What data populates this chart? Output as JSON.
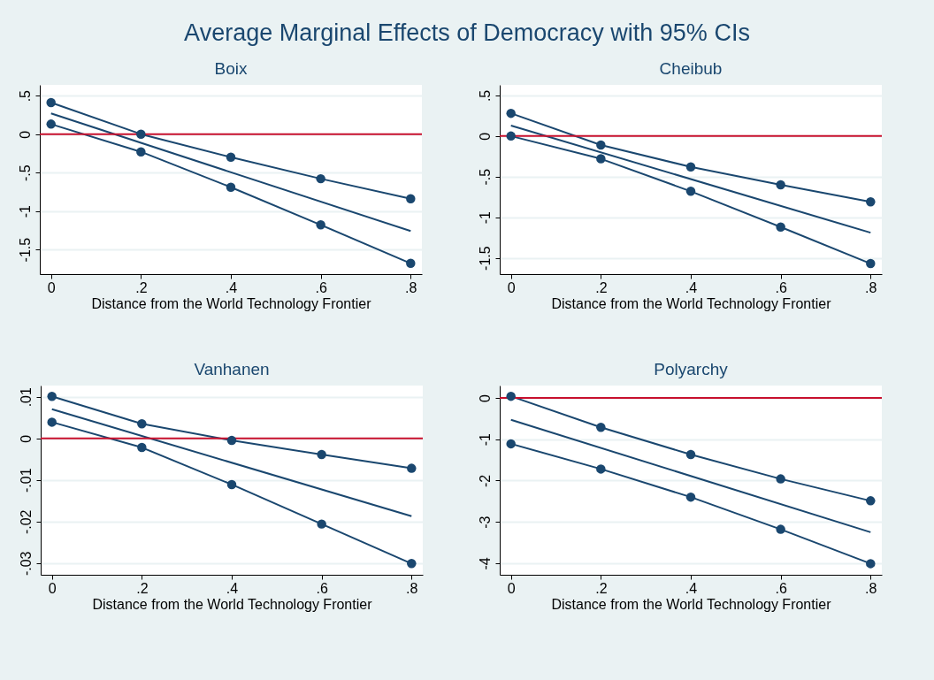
{
  "chart_data": [
    {
      "type": "other",
      "title": "Average Marginal Effects of Democracy with 95% CIs"
    },
    {
      "type": "line",
      "title": "Boix",
      "xlabel": "Distance from the World Technology Frontier",
      "xlim": [
        -0.025,
        0.825
      ],
      "xticks": [
        {
          "value": 0,
          "label": "0"
        },
        {
          "value": 0.2,
          "label": ".2"
        },
        {
          "value": 0.4,
          "label": ".4"
        },
        {
          "value": 0.6,
          "label": ".6"
        },
        {
          "value": 0.8,
          "label": ".8"
        }
      ],
      "ylim": [
        -1.82,
        0.64
      ],
      "yticks": [
        {
          "value": -1.5,
          "label": "-1.5"
        },
        -1,
        {
          "value": -0.5,
          "label": "-.5"
        },
        0,
        {
          "value": 0.5,
          "label": ".5"
        }
      ],
      "grid": "y",
      "ref_lines": [
        {
          "axis": "y",
          "value": 0,
          "color": "#c8102e"
        }
      ],
      "series": [
        {
          "color": "#1a476f",
          "marker": "circle",
          "x": [
            0,
            0.2,
            0.4,
            0.6,
            0.8
          ],
          "values": [
            0.41,
            0.0,
            -0.3,
            -0.58,
            -0.84
          ]
        },
        {
          "color": "#1a476f",
          "marker": "none",
          "x": [
            0,
            0.8
          ],
          "values": [
            0.27,
            -1.26
          ]
        },
        {
          "color": "#1a476f",
          "marker": "circle",
          "x": [
            0,
            0.2,
            0.4,
            0.6,
            0.8
          ],
          "values": [
            0.13,
            -0.23,
            -0.69,
            -1.18,
            -1.68
          ]
        }
      ]
    },
    {
      "type": "line",
      "title": "Cheibub",
      "xlabel": "Distance from the World Technology Frontier",
      "xlim": [
        -0.025,
        0.825
      ],
      "xticks": [
        {
          "value": 0,
          "label": "0"
        },
        {
          "value": 0.2,
          "label": ".2"
        },
        {
          "value": 0.4,
          "label": ".4"
        },
        {
          "value": 0.6,
          "label": ".6"
        },
        {
          "value": 0.8,
          "label": ".8"
        }
      ],
      "ylim": [
        -1.7,
        0.63
      ],
      "yticks": [
        {
          "value": -1.5,
          "label": "-1.5"
        },
        -1,
        {
          "value": -0.5,
          "label": "-.5"
        },
        0,
        {
          "value": 0.5,
          "label": ".5"
        }
      ],
      "grid": "y",
      "ref_lines": [
        {
          "axis": "y",
          "value": 0,
          "color": "#c8102e"
        }
      ],
      "series": [
        {
          "color": "#1a476f",
          "marker": "circle",
          "x": [
            0,
            0.2,
            0.4,
            0.6,
            0.8
          ],
          "values": [
            0.28,
            -0.11,
            -0.38,
            -0.6,
            -0.81
          ]
        },
        {
          "color": "#1a476f",
          "marker": "none",
          "x": [
            0,
            0.8
          ],
          "values": [
            0.13,
            -1.19
          ]
        },
        {
          "color": "#1a476f",
          "marker": "circle",
          "x": [
            0,
            0.2,
            0.4,
            0.6,
            0.8
          ],
          "values": [
            0.0,
            -0.28,
            -0.68,
            -1.12,
            -1.57
          ]
        }
      ]
    },
    {
      "type": "line",
      "title": "Vanhanen",
      "xlabel": "Distance from the World Technology Frontier",
      "xlim": [
        -0.025,
        0.825
      ],
      "xticks": [
        {
          "value": 0,
          "label": "0"
        },
        {
          "value": 0.2,
          "label": ".2"
        },
        {
          "value": 0.4,
          "label": ".4"
        },
        {
          "value": 0.6,
          "label": ".6"
        },
        {
          "value": 0.8,
          "label": ".8"
        }
      ],
      "ylim": [
        -0.0328,
        0.0127
      ],
      "yticks": [
        {
          "value": -0.03,
          "label": "-.03"
        },
        {
          "value": -0.02,
          "label": "-.02"
        },
        {
          "value": -0.01,
          "label": "-.01"
        },
        0,
        {
          "value": 0.01,
          "label": ".01"
        }
      ],
      "grid": "y",
      "ref_lines": [
        {
          "axis": "y",
          "value": 0,
          "color": "#c8102e"
        }
      ],
      "series": [
        {
          "color": "#1a476f",
          "marker": "circle",
          "x": [
            0,
            0.2,
            0.4,
            0.6,
            0.8
          ],
          "values": [
            0.0101,
            0.0035,
            -0.0005,
            -0.0039,
            -0.0072
          ]
        },
        {
          "color": "#1a476f",
          "marker": "none",
          "x": [
            0,
            0.8
          ],
          "values": [
            0.007,
            -0.0187
          ]
        },
        {
          "color": "#1a476f",
          "marker": "circle",
          "x": [
            0,
            0.2,
            0.4,
            0.6,
            0.8
          ],
          "values": [
            0.0039,
            -0.0022,
            -0.0111,
            -0.0206,
            -0.0301
          ]
        }
      ]
    },
    {
      "type": "line",
      "title": "Polyarchy",
      "xlabel": "Distance from the World Technology Frontier",
      "xlim": [
        -0.025,
        0.825
      ],
      "xticks": [
        {
          "value": 0,
          "label": "0"
        },
        {
          "value": 0.2,
          "label": ".2"
        },
        {
          "value": 0.4,
          "label": ".4"
        },
        {
          "value": 0.6,
          "label": ".6"
        },
        {
          "value": 0.8,
          "label": ".8"
        }
      ],
      "ylim": [
        -4.28,
        0.3
      ],
      "yticks": [
        -4,
        -3,
        -2,
        -1,
        0
      ],
      "grid": "y",
      "ref_lines": [
        {
          "axis": "y",
          "value": 0,
          "color": "#c8102e"
        }
      ],
      "series": [
        {
          "color": "#1a476f",
          "marker": "circle",
          "x": [
            0,
            0.2,
            0.4,
            0.6,
            0.8
          ],
          "values": [
            0.04,
            -0.71,
            -1.37,
            -1.96,
            -2.49
          ]
        },
        {
          "color": "#1a476f",
          "marker": "none",
          "x": [
            0,
            0.8
          ],
          "values": [
            -0.53,
            -3.25
          ]
        },
        {
          "color": "#1a476f",
          "marker": "circle",
          "x": [
            0,
            0.2,
            0.4,
            0.6,
            0.8
          ],
          "values": [
            -1.11,
            -1.72,
            -2.4,
            -3.18,
            -4.01
          ]
        }
      ]
    }
  ]
}
